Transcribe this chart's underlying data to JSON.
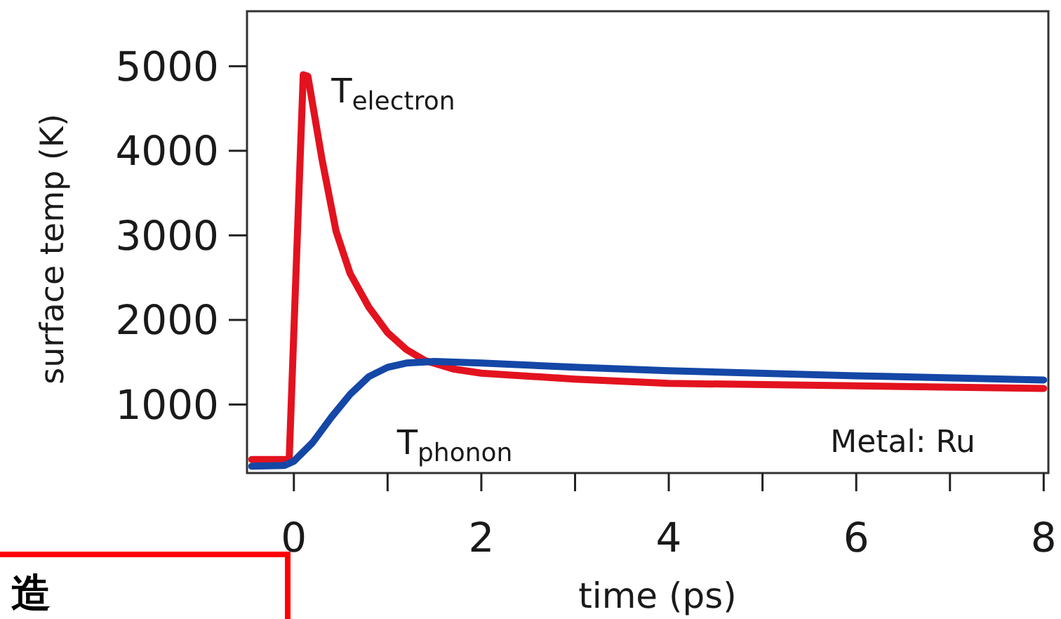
{
  "chart_data": {
    "type": "line",
    "xlabel": "time (ps)",
    "ylabel": "surface temp (K)",
    "xlim": [
      -0.5,
      8.05
    ],
    "ylim": [
      190,
      5650
    ],
    "xticks": [
      0,
      {
        "value": 1,
        "label": null
      },
      2,
      {
        "value": 3,
        "label": null
      },
      4,
      {
        "value": 5,
        "label": null
      },
      6,
      {
        "value": 7,
        "label": null
      },
      8
    ],
    "yticks": [
      1000,
      2000,
      3000,
      4000,
      5000
    ],
    "grid": false,
    "line_style": "solid",
    "marker": "none",
    "annotations": [
      "Metal: Ru",
      "造"
    ],
    "series": [
      {
        "name": "T$_{electron}$",
        "color": "#e3121f",
        "x": [
          -0.45,
          -0.05,
          0.1,
          0.15,
          0.3,
          0.45,
          0.6,
          0.8,
          1.0,
          1.2,
          1.4,
          1.7,
          2.0,
          3.0,
          4.0,
          6.0,
          8.0
        ],
        "values": [
          350,
          350,
          4900,
          4880,
          3900,
          3050,
          2550,
          2150,
          1850,
          1650,
          1520,
          1420,
          1370,
          1300,
          1250,
          1220,
          1190
        ]
      },
      {
        "name": "T$_{phonon}$",
        "color": "#1447a6",
        "x": [
          -0.45,
          -0.1,
          0.0,
          0.2,
          0.4,
          0.6,
          0.8,
          1.0,
          1.2,
          1.5,
          2.0,
          3.0,
          4.0,
          6.0,
          8.0
        ],
        "values": [
          270,
          280,
          330,
          550,
          850,
          1120,
          1330,
          1440,
          1490,
          1510,
          1490,
          1440,
          1400,
          1340,
          1290
        ]
      }
    ]
  }
}
